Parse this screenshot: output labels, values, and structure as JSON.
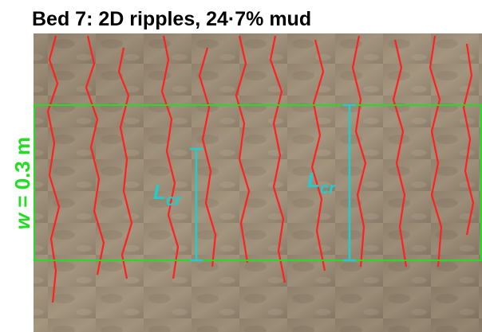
{
  "header": {
    "title": "Bed 7: 2D ripples, 24·7% mud"
  },
  "annotations": {
    "width_label": {
      "symbol": "w",
      "text": "= 0.3 m"
    },
    "crest_labels": [
      {
        "main": "L",
        "sub": "cr"
      },
      {
        "main": "L",
        "sub": "cr"
      }
    ]
  }
}
